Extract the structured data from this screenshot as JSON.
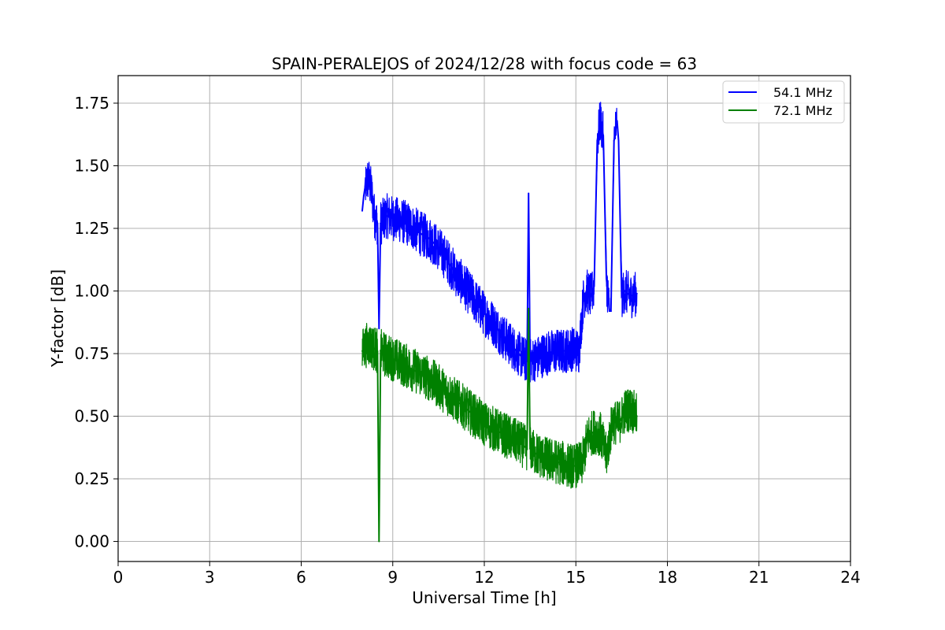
{
  "chart_data": {
    "type": "line",
    "title": "SPAIN-PERALEJOS of 2024/12/28 with focus code = 63",
    "xlabel": "Universal Time [h]",
    "ylabel": "Y-factor [dB]",
    "xlim": [
      0,
      24
    ],
    "ylim": [
      -0.08,
      1.86
    ],
    "xticks": [
      0,
      3,
      6,
      9,
      12,
      15,
      18,
      21,
      24
    ],
    "xtick_labels": [
      "0",
      "3",
      "6",
      "9",
      "12",
      "15",
      "18",
      "21",
      "24"
    ],
    "yticks": [
      0.0,
      0.25,
      0.5,
      0.75,
      1.0,
      1.25,
      1.5,
      1.75
    ],
    "ytick_labels": [
      "0.00",
      "0.25",
      "0.50",
      "0.75",
      "1.00",
      "1.25",
      "1.50",
      "1.75"
    ],
    "grid": true,
    "legend_position": "top-right",
    "series": [
      {
        "name": "54.1 MHz",
        "color": "#0000ff",
        "x": [
          8.0,
          8.05,
          8.1,
          8.2,
          8.3,
          8.4,
          8.5,
          8.55,
          8.6,
          8.8,
          9.0,
          9.3,
          9.6,
          9.9,
          10.2,
          10.5,
          10.8,
          11.1,
          11.4,
          11.7,
          12.0,
          12.3,
          12.6,
          12.9,
          13.2,
          13.4,
          13.45,
          13.5,
          13.7,
          14.0,
          14.3,
          14.6,
          14.9,
          15.1,
          15.25,
          15.35,
          15.5,
          15.6,
          15.7,
          15.8,
          15.9,
          16.0,
          16.1,
          16.15,
          16.25,
          16.35,
          16.4,
          16.5,
          16.6,
          16.8,
          17.0
        ],
        "y": [
          1.32,
          1.38,
          1.42,
          1.45,
          1.4,
          1.3,
          1.27,
          0.85,
          1.27,
          1.3,
          1.29,
          1.28,
          1.26,
          1.23,
          1.21,
          1.17,
          1.12,
          1.06,
          1.01,
          0.96,
          0.91,
          0.87,
          0.82,
          0.78,
          0.74,
          0.72,
          1.39,
          0.72,
          0.73,
          0.75,
          0.76,
          0.76,
          0.77,
          0.76,
          0.97,
          1.0,
          0.98,
          1.02,
          1.6,
          1.68,
          1.62,
          1.05,
          0.92,
          0.92,
          1.6,
          1.68,
          1.6,
          0.98,
          1.0,
          0.98,
          0.99
        ]
      },
      {
        "name": "72.1 MHz",
        "color": "#008000",
        "x": [
          8.0,
          8.1,
          8.2,
          8.3,
          8.4,
          8.5,
          8.55,
          8.6,
          8.8,
          9.0,
          9.3,
          9.6,
          9.9,
          10.2,
          10.5,
          10.8,
          11.1,
          11.4,
          11.7,
          12.0,
          12.3,
          12.6,
          12.9,
          13.2,
          13.4,
          13.45,
          13.5,
          13.7,
          14.0,
          14.3,
          14.6,
          14.9,
          15.2,
          15.4,
          15.6,
          15.8,
          16.0,
          16.2,
          16.4,
          16.6,
          16.8,
          17.0
        ],
        "y": [
          0.76,
          0.78,
          0.79,
          0.78,
          0.77,
          0.76,
          0.0,
          0.76,
          0.74,
          0.73,
          0.71,
          0.69,
          0.67,
          0.65,
          0.62,
          0.59,
          0.56,
          0.53,
          0.5,
          0.47,
          0.45,
          0.43,
          0.41,
          0.39,
          0.37,
          0.93,
          0.37,
          0.35,
          0.33,
          0.32,
          0.31,
          0.3,
          0.31,
          0.42,
          0.44,
          0.43,
          0.34,
          0.48,
          0.47,
          0.52,
          0.53,
          0.5
        ]
      }
    ]
  }
}
